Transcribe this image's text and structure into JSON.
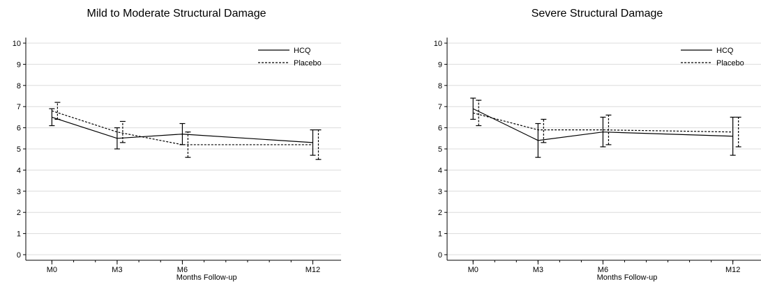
{
  "chart_data": [
    {
      "type": "line",
      "title": "Mild to Moderate Structural Damage",
      "xlabel": "Months Follow-up",
      "ylabel": "",
      "ylim": [
        0,
        10
      ],
      "yticks": [
        0,
        1,
        2,
        3,
        4,
        5,
        6,
        7,
        8,
        9,
        10
      ],
      "x_months": [
        0,
        3,
        6,
        12
      ],
      "x_ticklabels": [
        "M0",
        "M3",
        "M6",
        "M12"
      ],
      "grid": "horizontal",
      "legend_position": "top-right",
      "series": [
        {
          "name": "HCQ",
          "style": "solid",
          "values": [
            6.5,
            5.5,
            5.7,
            5.3
          ],
          "err_low": [
            6.1,
            5.0,
            5.2,
            4.7
          ],
          "err_high": [
            6.9,
            6.0,
            6.2,
            5.9
          ]
        },
        {
          "name": "Placebo",
          "style": "dashed",
          "values": [
            6.8,
            5.8,
            5.2,
            5.2
          ],
          "err_low": [
            6.4,
            5.3,
            4.6,
            4.5
          ],
          "err_high": [
            7.2,
            6.3,
            5.8,
            5.9
          ]
        }
      ]
    },
    {
      "type": "line",
      "title": "Severe Structural Damage",
      "xlabel": "Months Follow-up",
      "ylabel": "",
      "ylim": [
        0,
        10
      ],
      "yticks": [
        0,
        1,
        2,
        3,
        4,
        5,
        6,
        7,
        8,
        9,
        10
      ],
      "x_months": [
        0,
        3,
        6,
        12
      ],
      "x_ticklabels": [
        "M0",
        "M3",
        "M6",
        "M12"
      ],
      "grid": "horizontal",
      "legend_position": "top-right",
      "series": [
        {
          "name": "HCQ",
          "style": "solid",
          "values": [
            6.9,
            5.4,
            5.8,
            5.6
          ],
          "err_low": [
            6.4,
            4.6,
            5.1,
            4.7
          ],
          "err_high": [
            7.4,
            6.2,
            6.5,
            6.5
          ]
        },
        {
          "name": "Placebo",
          "style": "dashed",
          "values": [
            6.7,
            5.9,
            5.9,
            5.8
          ],
          "err_low": [
            6.1,
            5.3,
            5.2,
            5.1
          ],
          "err_high": [
            7.3,
            6.4,
            6.6,
            6.5
          ]
        }
      ]
    }
  ]
}
